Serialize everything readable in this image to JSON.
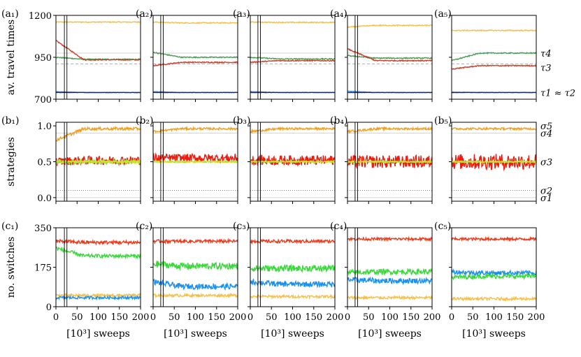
{
  "chart_data": {
    "type": "line",
    "columns": [
      "1",
      "2",
      "3",
      "4",
      "5"
    ],
    "rows": [
      {
        "key": "a",
        "ylabel": "av. travel times",
        "ylim": [
          700,
          1200
        ],
        "yticks": [
          700,
          950,
          1200
        ],
        "ytick_labels": [
          "700",
          "950",
          "1200"
        ],
        "right_labels": [
          {
            "text": "τ4",
            "y": 975
          },
          {
            "text": "τ3",
            "y": 890
          },
          {
            "text": "τ1 ≈ τ2",
            "y": 740
          }
        ],
        "hlines": [
          {
            "y": 910,
            "style": "dashed"
          },
          {
            "y": 975,
            "style": "solid-light"
          },
          {
            "y": 740,
            "style": "solid-light"
          }
        ],
        "panels": [
          {
            "label": "(a₁)",
            "vlines": [
              20,
              26
            ],
            "series": [
              {
                "color": "#f4c04a",
                "start": 1160,
                "end": 1160,
                "noise": 3
              },
              {
                "color": "#4c9a54",
                "start": 950,
                "end": 938,
                "noise": 3
              },
              {
                "color": "#c8402a",
                "start": 1050,
                "end": 935,
                "noise": 3
              },
              {
                "color": "#3a8ad8",
                "start": 745,
                "end": 740,
                "noise": 1
              },
              {
                "color": "#1a2a5a",
                "start": 740,
                "end": 740,
                "noise": 1
              }
            ]
          },
          {
            "label": "(a₂)",
            "vlines": [
              18,
              24
            ],
            "series": [
              {
                "color": "#f4c04a",
                "start": 1160,
                "end": 1155,
                "noise": 3
              },
              {
                "color": "#4c9a54",
                "start": 980,
                "end": 950,
                "noise": 3
              },
              {
                "color": "#c8402a",
                "start": 900,
                "end": 920,
                "noise": 3
              },
              {
                "color": "#3a8ad8",
                "start": 745,
                "end": 740,
                "noise": 1
              },
              {
                "color": "#1a2a5a",
                "start": 740,
                "end": 740,
                "noise": 1
              }
            ]
          },
          {
            "label": "(a₃)",
            "vlines": [
              18,
              24
            ],
            "series": [
              {
                "color": "#f4c04a",
                "start": 1160,
                "end": 1158,
                "noise": 3
              },
              {
                "color": "#4c9a54",
                "start": 950,
                "end": 940,
                "noise": 3
              },
              {
                "color": "#c8402a",
                "start": 920,
                "end": 930,
                "noise": 3
              },
              {
                "color": "#3a8ad8",
                "start": 745,
                "end": 740,
                "noise": 1
              },
              {
                "color": "#1a2a5a",
                "start": 740,
                "end": 740,
                "noise": 1
              }
            ]
          },
          {
            "label": "(a₄)",
            "vlines": [
              18,
              24
            ],
            "series": [
              {
                "color": "#f4c04a",
                "start": 1130,
                "end": 1140,
                "noise": 3
              },
              {
                "color": "#4c9a54",
                "start": 960,
                "end": 945,
                "noise": 3
              },
              {
                "color": "#c8402a",
                "start": 1000,
                "end": 930,
                "noise": 3
              },
              {
                "color": "#3a8ad8",
                "start": 748,
                "end": 740,
                "noise": 1
              },
              {
                "color": "#1a2a5a",
                "start": 740,
                "end": 740,
                "noise": 1
              }
            ]
          },
          {
            "label": "(a₅)",
            "vlines": [],
            "series": [
              {
                "color": "#f4c04a",
                "start": 1110,
                "end": 1110,
                "noise": 3
              },
              {
                "color": "#4c9a54",
                "start": 930,
                "end": 975,
                "noise": 3
              },
              {
                "color": "#c8402a",
                "start": 880,
                "end": 900,
                "noise": 3
              },
              {
                "color": "#3a8ad8",
                "start": 742,
                "end": 740,
                "noise": 1
              },
              {
                "color": "#1a2a5a",
                "start": 740,
                "end": 740,
                "noise": 1
              }
            ]
          }
        ]
      },
      {
        "key": "b",
        "ylabel": "strategies",
        "ylim": [
          -0.05,
          1.05
        ],
        "yticks": [
          0,
          0.5,
          1
        ],
        "ytick_labels": [
          "0.0",
          "0.5",
          "1.0"
        ],
        "right_labels": [
          {
            "text": "σ5",
            "y": 1.0
          },
          {
            "text": "σ4",
            "y": 0.9
          },
          {
            "text": "σ3",
            "y": 0.5
          },
          {
            "text": "σ2",
            "y": 0.1
          },
          {
            "text": "σ1",
            "y": 0.0
          }
        ],
        "hlines": [
          {
            "y": 0.1,
            "style": "dotted"
          },
          {
            "y": 0.0,
            "style": "solid-light"
          },
          {
            "y": 0.9,
            "style": "solid-light"
          }
        ],
        "panels": [
          {
            "label": "(b₁)",
            "vlines": [
              20,
              26
            ],
            "series": [
              {
                "color": "#f0a020",
                "start": 0.8,
                "end": 0.96,
                "noise": 0.02
              },
              {
                "color": "#ee1c10",
                "start": 0.5,
                "end": 0.52,
                "noise": 0.06
              },
              {
                "color": "#8ad83a",
                "start": 0.5,
                "end": 0.5,
                "noise": 0.03
              },
              {
                "color": "#d8e02a",
                "start": 0.5,
                "end": 0.5,
                "noise": 0.015
              }
            ]
          },
          {
            "label": "(b₂)",
            "vlines": [
              18,
              24
            ],
            "series": [
              {
                "color": "#f0a020",
                "start": 0.92,
                "end": 0.96,
                "noise": 0.015
              },
              {
                "color": "#ee1c10",
                "start": 0.55,
                "end": 0.55,
                "noise": 0.06
              },
              {
                "color": "#8ad83a",
                "start": 0.5,
                "end": 0.5,
                "noise": 0.01
              },
              {
                "color": "#d8e02a",
                "start": 0.5,
                "end": 0.5,
                "noise": 0.01
              }
            ]
          },
          {
            "label": "(b₃)",
            "vlines": [
              18,
              24
            ],
            "series": [
              {
                "color": "#f0a020",
                "start": 0.92,
                "end": 0.96,
                "noise": 0.015
              },
              {
                "color": "#ee1c10",
                "start": 0.52,
                "end": 0.52,
                "noise": 0.07
              },
              {
                "color": "#8ad83a",
                "start": 0.5,
                "end": 0.5,
                "noise": 0.01
              },
              {
                "color": "#d8e02a",
                "start": 0.5,
                "end": 0.5,
                "noise": 0.01
              }
            ]
          },
          {
            "label": "(b₄)",
            "vlines": [
              18,
              24
            ],
            "series": [
              {
                "color": "#f0a020",
                "start": 0.92,
                "end": 0.96,
                "noise": 0.015
              },
              {
                "color": "#ee1c10",
                "start": 0.5,
                "end": 0.5,
                "noise": 0.09
              },
              {
                "color": "#8ad83a",
                "start": 0.5,
                "end": 0.5,
                "noise": 0.01
              },
              {
                "color": "#d8e02a",
                "start": 0.5,
                "end": 0.5,
                "noise": 0.01
              }
            ]
          },
          {
            "label": "(b₅)",
            "vlines": [],
            "series": [
              {
                "color": "#f0a020",
                "start": 0.96,
                "end": 0.96,
                "noise": 0.015
              },
              {
                "color": "#ee1c10",
                "start": 0.5,
                "end": 0.5,
                "noise": 0.11
              },
              {
                "color": "#8ad83a",
                "start": 0.5,
                "end": 0.5,
                "noise": 0.01
              },
              {
                "color": "#d8e02a",
                "start": 0.5,
                "end": 0.5,
                "noise": 0.01
              }
            ]
          }
        ]
      },
      {
        "key": "c",
        "ylabel": "no. switches",
        "ylim": [
          0,
          350
        ],
        "yticks": [
          0,
          175,
          350
        ],
        "ytick_labels": [
          "0",
          "175",
          "350"
        ],
        "right_labels": [],
        "hlines": [],
        "panels": [
          {
            "label": "(c₁)",
            "vlines": [
              20,
              26
            ],
            "series": [
              {
                "color": "#ee3a1a",
                "start": 290,
                "end": 285,
                "noise": 8
              },
              {
                "color": "#3ad83a",
                "start": 260,
                "end": 225,
                "noise": 8
              },
              {
                "color": "#f4c04a",
                "start": 50,
                "end": 50,
                "noise": 6
              },
              {
                "color": "#1a90ee",
                "start": 40,
                "end": 40,
                "noise": 6
              }
            ]
          },
          {
            "label": "(c₂)",
            "vlines": [
              18,
              24
            ],
            "series": [
              {
                "color": "#ee3a1a",
                "start": 290,
                "end": 290,
                "noise": 7
              },
              {
                "color": "#3ad83a",
                "start": 190,
                "end": 180,
                "noise": 15
              },
              {
                "color": "#1a90ee",
                "start": 110,
                "end": 90,
                "noise": 12
              },
              {
                "color": "#f4c04a",
                "start": 50,
                "end": 50,
                "noise": 6
              }
            ]
          },
          {
            "label": "(c₃)",
            "vlines": [
              18,
              24
            ],
            "series": [
              {
                "color": "#ee3a1a",
                "start": 290,
                "end": 290,
                "noise": 7
              },
              {
                "color": "#3ad83a",
                "start": 170,
                "end": 170,
                "noise": 14
              },
              {
                "color": "#1a90ee",
                "start": 110,
                "end": 100,
                "noise": 12
              },
              {
                "color": "#f4c04a",
                "start": 45,
                "end": 45,
                "noise": 6
              }
            ]
          },
          {
            "label": "(c₄)",
            "vlines": [
              18,
              24
            ],
            "series": [
              {
                "color": "#ee3a1a",
                "start": 300,
                "end": 300,
                "noise": 6
              },
              {
                "color": "#3ad83a",
                "start": 150,
                "end": 155,
                "noise": 12
              },
              {
                "color": "#1a90ee",
                "start": 120,
                "end": 115,
                "noise": 12
              },
              {
                "color": "#f4c04a",
                "start": 40,
                "end": 40,
                "noise": 6
              }
            ]
          },
          {
            "label": "(c₅)",
            "vlines": [],
            "series": [
              {
                "color": "#ee3a1a",
                "start": 300,
                "end": 300,
                "noise": 6
              },
              {
                "color": "#1a90ee",
                "start": 155,
                "end": 150,
                "noise": 10
              },
              {
                "color": "#3ad83a",
                "start": 130,
                "end": 135,
                "noise": 10
              },
              {
                "color": "#f4c04a",
                "start": 35,
                "end": 35,
                "noise": 6
              }
            ]
          }
        ]
      }
    ],
    "x": {
      "xlim": [
        0,
        200
      ],
      "xticks": [
        0,
        50,
        100,
        150,
        200
      ],
      "xtick_labels": [
        "0",
        "50",
        "100",
        "150",
        "200"
      ],
      "xlabel": "[10³] sweeps"
    }
  }
}
